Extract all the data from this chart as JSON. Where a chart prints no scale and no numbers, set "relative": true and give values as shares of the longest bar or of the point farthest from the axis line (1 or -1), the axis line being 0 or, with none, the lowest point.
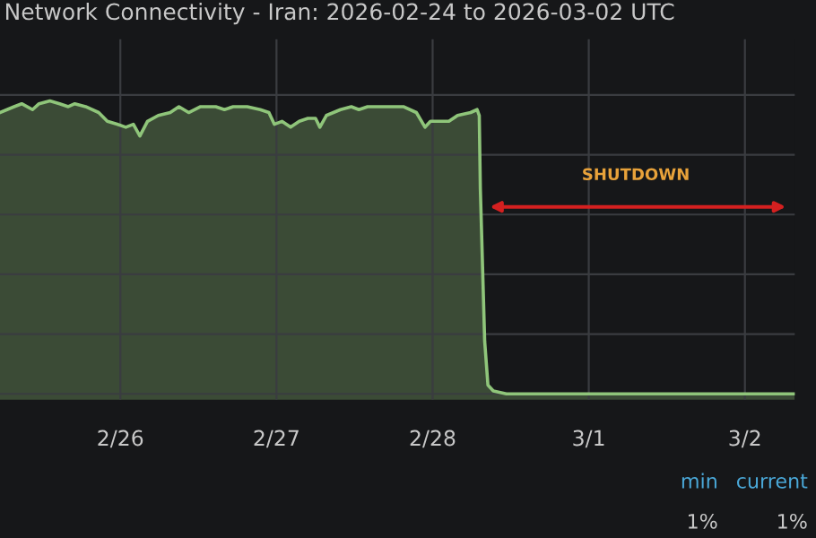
{
  "chart_data": {
    "type": "area",
    "title": "Network Connectivity - Iran: 2026-02-24 to 2026-03-02 UTC",
    "relative": true,
    "grid": true,
    "legend": false,
    "annotations": [
      "min",
      "current",
      "1%",
      "1%",
      "SHUTDOWN"
    ],
    "xlim": [
      "2026-02-25T05:30",
      "2026-03-02T07:40"
    ],
    "xticks": [
      {
        "value": "2026-02-26",
        "label": "2/26"
      },
      {
        "value": "2026-02-27",
        "label": "2/27"
      },
      {
        "value": "2026-02-28",
        "label": "2/28"
      },
      {
        "value": "2026-03-01",
        "label": "3/1"
      },
      {
        "value": "2026-03-02",
        "label": "3/2"
      }
    ],
    "series": [
      {
        "color": "#8fc57a",
        "x": [
          "2026-02-25T05:30",
          "2026-02-25T07:40",
          "2026-02-25T08:50",
          "2026-02-25T10:30",
          "2026-02-25T11:30",
          "2026-02-25T13:10",
          "2026-02-25T14:40",
          "2026-02-25T16:00",
          "2026-02-25T17:00",
          "2026-02-25T18:40",
          "2026-02-25T20:40",
          "2026-02-25T22:00",
          "2026-02-25T23:30",
          "2026-02-26T00:50",
          "2026-02-26T02:00",
          "2026-02-26T03:00",
          "2026-02-26T04:10",
          "2026-02-26T05:50",
          "2026-02-26T07:40",
          "2026-02-26T09:00",
          "2026-02-26T10:30",
          "2026-02-26T12:20",
          "2026-02-26T14:40",
          "2026-02-26T16:00",
          "2026-02-26T17:20",
          "2026-02-26T19:30",
          "2026-02-26T21:30",
          "2026-02-26T22:50",
          "2026-02-26T23:40",
          "2026-02-27T00:50",
          "2026-02-27T02:10",
          "2026-02-27T03:30",
          "2026-02-27T04:50",
          "2026-02-27T06:00",
          "2026-02-27T06:40",
          "2026-02-27T07:40",
          "2026-02-27T09:50",
          "2026-02-27T11:30",
          "2026-02-27T12:40",
          "2026-02-27T14:00",
          "2026-02-27T15:20",
          "2026-02-27T17:40",
          "2026-02-27T19:30",
          "2026-02-27T21:30",
          "2026-02-27T22:50",
          "2026-02-27T23:40",
          "2026-02-28T01:00",
          "2026-02-28T02:30",
          "2026-02-28T03:50",
          "2026-02-28T05:50",
          "2026-02-28T06:50",
          "2026-02-28T07:10",
          "2026-02-28T07:20",
          "2026-02-28T08:00",
          "2026-02-28T08:30",
          "2026-02-28T09:20",
          "2026-02-28T11:20",
          "2026-02-28T16:20",
          "2026-03-01T06:00",
          "2026-03-01T19:50",
          "2026-03-02T07:40"
        ],
        "values": [
          0.96,
          0.98,
          0.99,
          0.97,
          0.99,
          1,
          0.99,
          0.98,
          0.99,
          0.98,
          0.96,
          0.93,
          0.92,
          0.91,
          0.92,
          0.88,
          0.93,
          0.95,
          0.96,
          0.98,
          0.96,
          0.98,
          0.98,
          0.97,
          0.98,
          0.98,
          0.97,
          0.96,
          0.92,
          0.93,
          0.91,
          0.93,
          0.94,
          0.94,
          0.91,
          0.95,
          0.97,
          0.98,
          0.97,
          0.98,
          0.98,
          0.98,
          0.98,
          0.96,
          0.91,
          0.93,
          0.93,
          0.93,
          0.95,
          0.96,
          0.97,
          0.95,
          0.7,
          0.18,
          0.03,
          0.01,
          0,
          0,
          0,
          0,
          0
        ]
      }
    ]
  }
}
